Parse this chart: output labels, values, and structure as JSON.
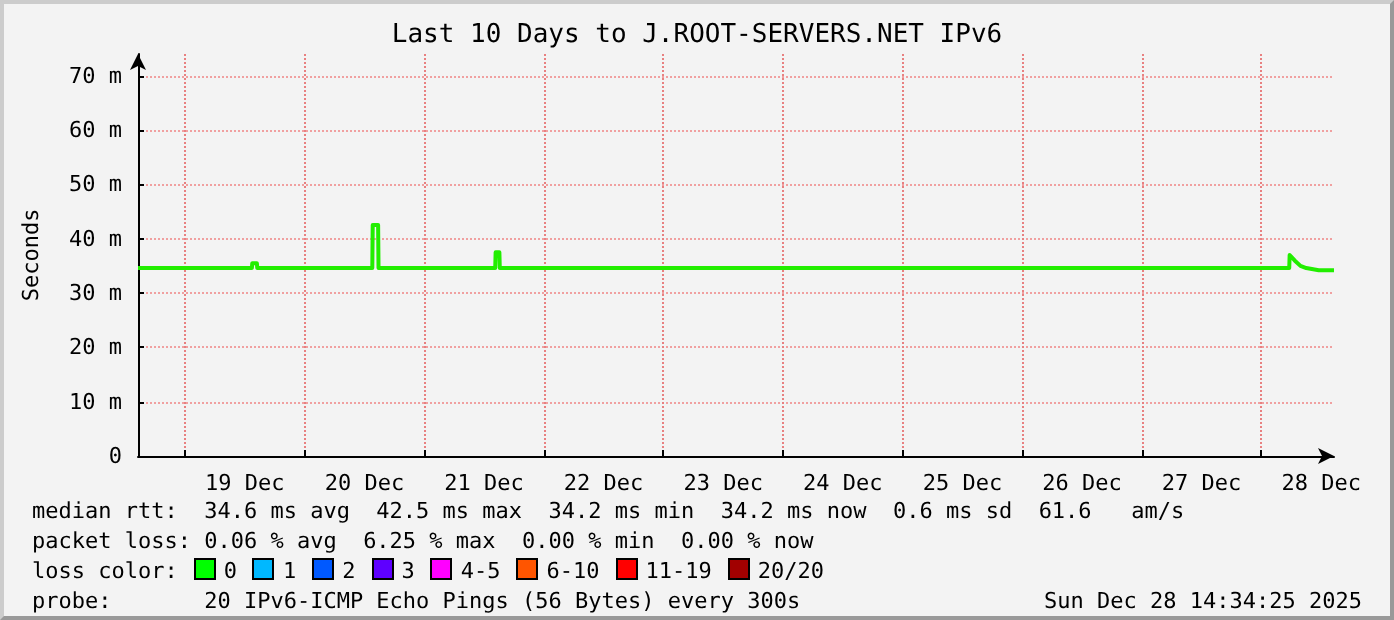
{
  "chart_data": {
    "type": "line",
    "title": "Last 10 Days to J.ROOT-SERVERS.NET IPv6",
    "ylabel": "Seconds",
    "xlim": [
      "2025-12-18T14:34",
      "2025-12-28T14:34"
    ],
    "xticks": [
      {
        "value": "2025-12-19T00:00",
        "label": null
      },
      {
        "value": "2025-12-19T12:00",
        "label": "19 Dec"
      },
      {
        "value": "2025-12-20T00:00",
        "label": null
      },
      {
        "value": "2025-12-20T12:00",
        "label": "20 Dec"
      },
      {
        "value": "2025-12-21T00:00",
        "label": null
      },
      {
        "value": "2025-12-21T12:00",
        "label": "21 Dec"
      },
      {
        "value": "2025-12-22T00:00",
        "label": null
      },
      {
        "value": "2025-12-22T12:00",
        "label": "22 Dec"
      },
      {
        "value": "2025-12-23T00:00",
        "label": null
      },
      {
        "value": "2025-12-23T12:00",
        "label": "23 Dec"
      },
      {
        "value": "2025-12-24T00:00",
        "label": null
      },
      {
        "value": "2025-12-24T12:00",
        "label": "24 Dec"
      },
      {
        "value": "2025-12-25T00:00",
        "label": null
      },
      {
        "value": "2025-12-25T12:00",
        "label": "25 Dec"
      },
      {
        "value": "2025-12-26T00:00",
        "label": null
      },
      {
        "value": "2025-12-26T12:00",
        "label": "26 Dec"
      },
      {
        "value": "2025-12-27T00:00",
        "label": null
      },
      {
        "value": "2025-12-27T12:00",
        "label": "27 Dec"
      },
      {
        "value": "2025-12-28T00:00",
        "label": null
      },
      {
        "value": "2025-12-28T12:00",
        "label": "28 Dec"
      }
    ],
    "ylim": [
      0,
      74
    ],
    "yticks": [
      {
        "value": 0,
        "label": "0"
      },
      {
        "value": 10,
        "label": "10 m"
      },
      {
        "value": 20,
        "label": "20 m"
      },
      {
        "value": 30,
        "label": "30 m"
      },
      {
        "value": 40,
        "label": "40 m"
      },
      {
        "value": 50,
        "label": "50 m"
      },
      {
        "value": 60,
        "label": "60 m"
      },
      {
        "value": 70,
        "label": "70 m"
      }
    ],
    "grid": true,
    "marker": "none",
    "line_style": "solid",
    "series": [
      {
        "color": "#22ee00",
        "x": [
          "2025-12-18T14:34",
          "2025-12-19T13:25",
          "2025-12-19T13:30",
          "2025-12-19T14:25",
          "2025-12-19T14:30",
          "2025-12-20T13:35",
          "2025-12-20T13:40",
          "2025-12-20T14:45",
          "2025-12-20T14:50",
          "2025-12-21T14:15",
          "2025-12-21T14:20",
          "2025-12-21T15:05",
          "2025-12-21T15:10",
          "2025-12-28T05:35",
          "2025-12-28T05:40",
          "2025-12-28T06:40",
          "2025-12-28T07:50",
          "2025-12-28T09:00",
          "2025-12-28T11:30",
          "2025-12-28T14:34"
        ],
        "values": [
          34.6,
          34.6,
          35.5,
          35.5,
          34.6,
          34.6,
          42.5,
          42.5,
          34.6,
          34.6,
          37.5,
          37.5,
          34.6,
          34.6,
          37,
          36,
          35,
          34.6,
          34.2,
          34.2
        ]
      }
    ],
    "annotations": [
      "median rtt:  34.6 ms avg  42.5 ms max  34.2 ms min  34.2 ms now  0.6 ms sd  61.6   am/s",
      "packet loss: 0.06 % avg  6.25 % max  0.00 % min  0.00 % now",
      "loss color:",
      "0",
      "1",
      "2",
      "3",
      "4-5",
      "6-10",
      "11-19",
      "20/20",
      "probe:       20 IPv6-ICMP Echo Pings (56 Bytes) every 300s",
      "Sun Dec 28 14:34:25 2025"
    ]
  }
}
